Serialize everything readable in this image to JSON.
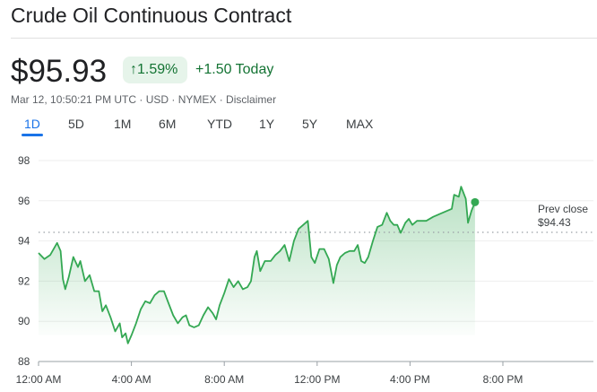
{
  "header": {
    "title": "Crude Oil Continuous Contract"
  },
  "quote": {
    "price": "$95.93",
    "change_pct": "1.59%",
    "change_abs": "+1.50 Today",
    "meta": "Mar 12, 10:50:21 PM UTC · USD · NYMEX · Disclaimer"
  },
  "icons": {
    "change_arrow": "arrow-up-icon"
  },
  "colors": {
    "up": "#137333",
    "line": "#34a853",
    "accent": "#1a73e8"
  },
  "tabs": [
    {
      "label": "1D",
      "active": true
    },
    {
      "label": "5D"
    },
    {
      "label": "1M"
    },
    {
      "label": "6M"
    },
    {
      "label": "YTD"
    },
    {
      "label": "1Y"
    },
    {
      "label": "5Y"
    },
    {
      "label": "MAX"
    }
  ],
  "chart_data": {
    "type": "area",
    "title": "",
    "xlabel": "",
    "ylabel": "",
    "ylim": [
      88,
      98
    ],
    "xlim_hours": [
      0,
      24
    ],
    "yticks": [
      "98",
      "96",
      "94",
      "92",
      "90",
      "88"
    ],
    "xticks": [
      {
        "h": 0,
        "label": "12:00 AM"
      },
      {
        "h": 4,
        "label": "4:00 AM"
      },
      {
        "h": 8,
        "label": "8:00 AM"
      },
      {
        "h": 12,
        "label": "12:00 PM"
      },
      {
        "h": 16,
        "label": "4:00 PM"
      },
      {
        "h": 20,
        "label": "8:00 PM"
      }
    ],
    "prev_close": {
      "label": "Prev close",
      "value_label": "$94.43",
      "value": 94.43
    },
    "grid": true,
    "series": [
      {
        "name": "Crude Oil",
        "x_hours": [
          0,
          0.25,
          0.5,
          0.8,
          0.95,
          1.05,
          1.15,
          1.3,
          1.5,
          1.7,
          1.8,
          2.0,
          2.2,
          2.4,
          2.6,
          2.75,
          2.9,
          3.1,
          3.3,
          3.5,
          3.6,
          3.75,
          3.85,
          4.0,
          4.2,
          4.4,
          4.6,
          4.8,
          5.0,
          5.2,
          5.4,
          5.6,
          5.8,
          6.0,
          6.2,
          6.35,
          6.5,
          6.7,
          6.9,
          7.1,
          7.3,
          7.5,
          7.65,
          7.8,
          8.0,
          8.2,
          8.4,
          8.6,
          8.8,
          9.0,
          9.15,
          9.3,
          9.4,
          9.55,
          9.75,
          10.0,
          10.2,
          10.4,
          10.6,
          10.8,
          11.0,
          11.2,
          11.4,
          11.6,
          11.75,
          11.9,
          12.1,
          12.3,
          12.5,
          12.7,
          12.85,
          13.0,
          13.2,
          13.4,
          13.6,
          13.75,
          13.9,
          14.05,
          14.2,
          14.4,
          14.6,
          14.8,
          15.0,
          15.15,
          15.3,
          15.45,
          15.6,
          15.8,
          15.95,
          16.1,
          16.3,
          16.5,
          16.7,
          17.0,
          17.4,
          17.8,
          17.9,
          18.1,
          18.2,
          18.4,
          18.5,
          18.65,
          18.8
        ],
        "values": [
          93.4,
          93.1,
          93.3,
          93.9,
          93.5,
          92.1,
          91.6,
          92.2,
          93.2,
          92.7,
          93.0,
          92.0,
          92.3,
          91.5,
          91.5,
          90.5,
          90.8,
          90.2,
          89.5,
          89.9,
          89.2,
          89.4,
          88.9,
          89.3,
          89.9,
          90.6,
          91.0,
          90.9,
          91.3,
          91.5,
          91.5,
          90.9,
          90.3,
          89.9,
          90.2,
          90.3,
          89.8,
          89.7,
          89.8,
          90.3,
          90.7,
          90.4,
          90.1,
          90.8,
          91.4,
          92.1,
          91.7,
          92.0,
          91.6,
          91.7,
          92.0,
          93.2,
          93.5,
          92.5,
          93.0,
          93.0,
          93.3,
          93.5,
          93.8,
          93.0,
          94.0,
          94.6,
          94.8,
          95.0,
          93.2,
          92.9,
          93.6,
          93.6,
          93.1,
          91.9,
          92.8,
          93.2,
          93.4,
          93.5,
          93.5,
          93.8,
          93.0,
          92.9,
          93.2,
          94.0,
          94.7,
          94.8,
          95.4,
          95.0,
          94.8,
          94.8,
          94.4,
          94.9,
          95.1,
          94.8,
          95.0,
          95.0,
          95.0,
          95.2,
          95.4,
          95.6,
          96.3,
          96.2,
          96.7,
          96.1,
          94.9,
          95.5,
          95.93
        ]
      }
    ]
  }
}
